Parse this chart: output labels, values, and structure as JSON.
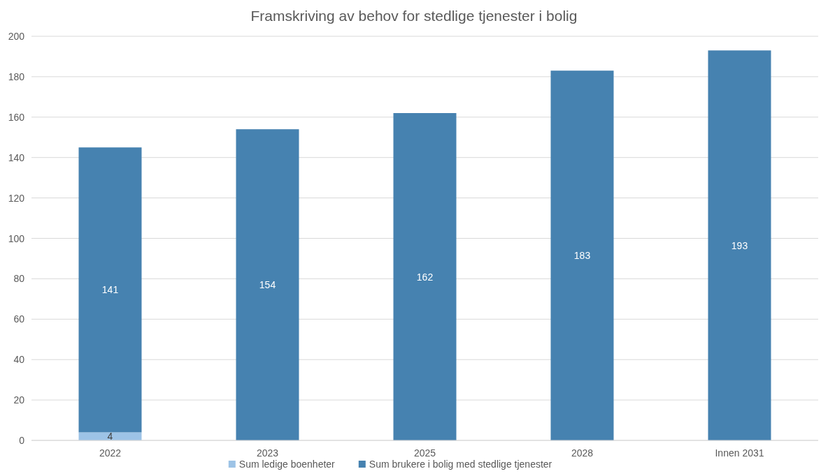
{
  "chart_data": {
    "type": "bar",
    "title": "Framskriving av behov for stedlige tjenester i bolig",
    "categories": [
      "2022",
      "2023",
      "2025",
      "2028",
      "Innen 2031"
    ],
    "stacked": true,
    "ylim": [
      0,
      200
    ],
    "yticks": [
      0,
      20,
      40,
      60,
      80,
      100,
      120,
      140,
      160,
      180,
      200
    ],
    "grid": "y",
    "legend": "bottom",
    "series": [
      {
        "name": "Sum ledige boenheter",
        "color": "#9dc3e6",
        "values": [
          4,
          null,
          null,
          null,
          null
        ],
        "value_labels": [
          "4",
          null,
          null,
          null,
          null
        ]
      },
      {
        "name": "Sum brukere i bolig med stedlige tjenester",
        "color": "#4682b0",
        "values": [
          141,
          154,
          162,
          183,
          193
        ],
        "value_labels": [
          "141",
          "154",
          "162",
          "183",
          "193"
        ]
      }
    ]
  }
}
